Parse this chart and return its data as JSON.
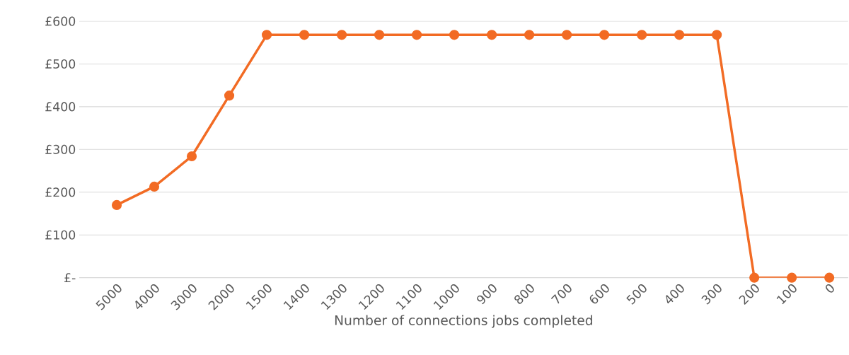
{
  "chart_data": {
    "type": "line",
    "xlabel": "Number of connections jobs completed",
    "categories": [
      "5000",
      "4000",
      "3000",
      "2000",
      "1500",
      "1400",
      "1300",
      "1200",
      "1100",
      "1000",
      "900",
      "800",
      "700",
      "600",
      "500",
      "400",
      "300",
      "200",
      "100",
      "0"
    ],
    "series": [
      {
        "color": "#f26b24",
        "values": [
          170,
          213,
          284,
          426,
          568,
          568,
          568,
          568,
          568,
          568,
          568,
          568,
          568,
          568,
          568,
          568,
          568,
          0,
          0,
          0
        ]
      }
    ],
    "ylim": [
      0,
      600
    ],
    "yticks": [
      {
        "value": 0,
        "label": "£-"
      },
      {
        "value": 100,
        "label": "£100"
      },
      {
        "value": 200,
        "label": "£200"
      },
      {
        "value": 300,
        "label": "£300"
      },
      {
        "value": 400,
        "label": "£400"
      },
      {
        "value": 500,
        "label": "£500"
      },
      {
        "value": 600,
        "label": "£600"
      }
    ],
    "grid": "y",
    "marker": "circle",
    "line_style": "solid"
  }
}
